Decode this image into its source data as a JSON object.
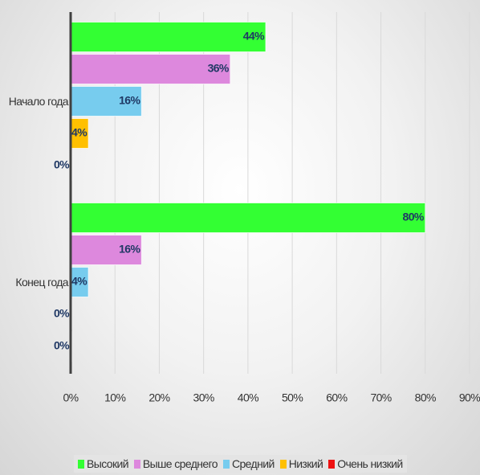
{
  "chart_data": {
    "type": "hbar",
    "categories": [
      "Начало года",
      "Конец года"
    ],
    "series": [
      {
        "name": "Высокий",
        "color": "#33ff33",
        "values": [
          44,
          80
        ],
        "value_labels": [
          "44%",
          "80%"
        ]
      },
      {
        "name": "Выше среднего",
        "color": "#dd88dd",
        "values": [
          36,
          16
        ],
        "value_labels": [
          "36%",
          "16%"
        ]
      },
      {
        "name": "Средний",
        "color": "#77ccee",
        "values": [
          16,
          4
        ],
        "value_labels": [
          "16%",
          "4%"
        ]
      },
      {
        "name": "Низкий",
        "color": "#ffc000",
        "values": [
          4,
          0
        ],
        "value_labels": [
          "4%",
          "0%"
        ]
      },
      {
        "name": "Очень низкий",
        "color": "#ee1111",
        "values": [
          0,
          0
        ],
        "value_labels": [
          "0%",
          "0%"
        ]
      }
    ],
    "xlim": [
      0,
      90
    ],
    "xticks": [
      {
        "value": 0,
        "label": "0%"
      },
      {
        "value": 10,
        "label": "10%"
      },
      {
        "value": 20,
        "label": "20%"
      },
      {
        "value": 30,
        "label": "30%"
      },
      {
        "value": 40,
        "label": "40%"
      },
      {
        "value": 50,
        "label": "50%"
      },
      {
        "value": 60,
        "label": "60%"
      },
      {
        "value": 70,
        "label": "70%"
      },
      {
        "value": 80,
        "label": "80%"
      },
      {
        "value": 90,
        "label": "90%"
      }
    ],
    "grid": true,
    "legend": "bottom"
  }
}
